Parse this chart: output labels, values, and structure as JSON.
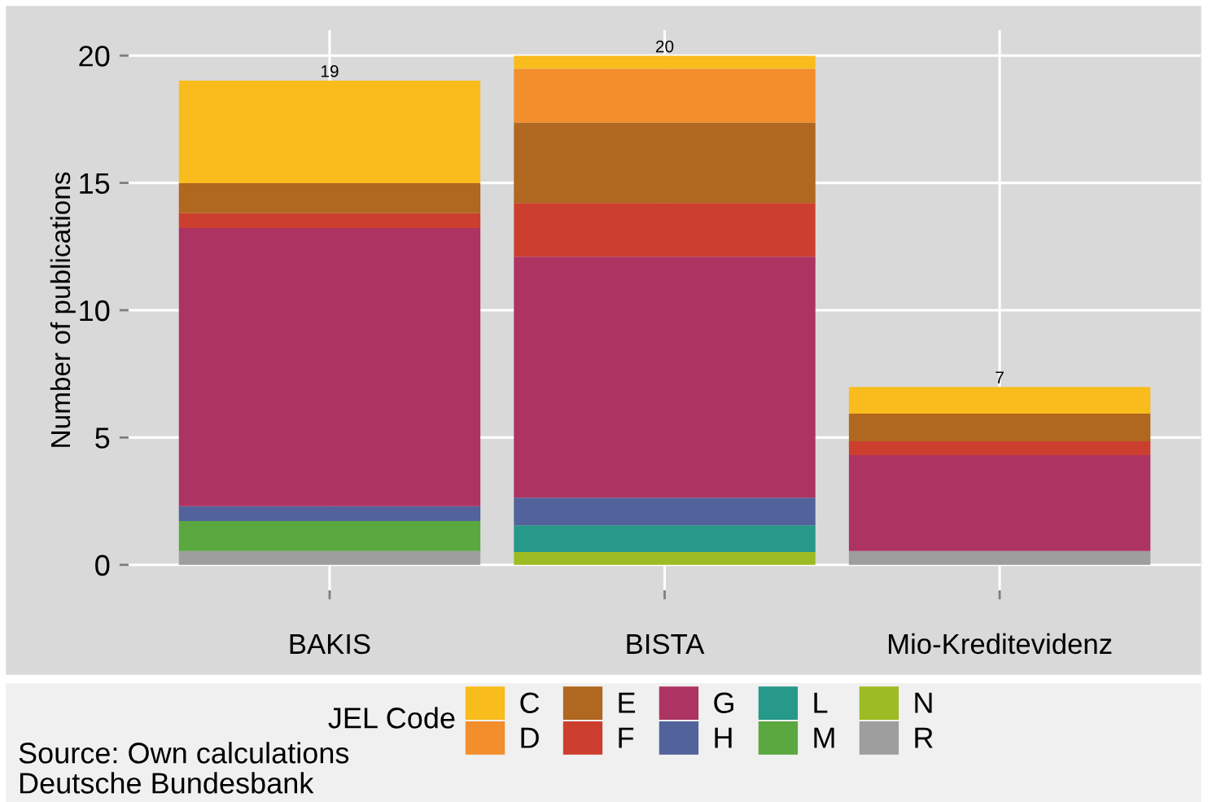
{
  "chart_data": {
    "type": "bar",
    "stacked": true,
    "ylabel": "Number of publications",
    "legend_title": "JEL Code",
    "categories": [
      "BAKIS",
      "BISTA",
      "Mio-Kreditevidenz"
    ],
    "series": [
      {
        "name": "R",
        "color": "#9e9e9f",
        "values": [
          0.54,
          0,
          0.54
        ]
      },
      {
        "name": "N",
        "color": "#9dbb22",
        "values": [
          0,
          0.5,
          0
        ]
      },
      {
        "name": "M",
        "color": "#5aa83f",
        "values": [
          1.18,
          0,
          0
        ]
      },
      {
        "name": "L",
        "color": "#26998a",
        "values": [
          0,
          1.05,
          0
        ]
      },
      {
        "name": "H",
        "color": "#52639c",
        "values": [
          0.58,
          1.09,
          0
        ]
      },
      {
        "name": "G",
        "color": "#ad3363",
        "values": [
          10.93,
          9.46,
          3.77
        ]
      },
      {
        "name": "F",
        "color": "#cc3f2e",
        "values": [
          0.58,
          2.11,
          0.54
        ]
      },
      {
        "name": "E",
        "color": "#b0671f",
        "values": [
          1.18,
          3.16,
          1.09
        ]
      },
      {
        "name": "D",
        "color": "#f28e2b",
        "values": [
          0,
          2.11,
          0
        ]
      },
      {
        "name": "C",
        "color": "#f9bc1d",
        "values": [
          4.03,
          0.51,
          1.05
        ]
      }
    ],
    "totals": [
      "19",
      "20",
      "7"
    ],
    "ylim": [
      -1,
      21
    ],
    "yticks": [
      0,
      5,
      10,
      15,
      20
    ],
    "grid": true,
    "legend": "bottom",
    "annotations": [
      "Source: Own calculations",
      "Deutsche Bundesbank"
    ]
  }
}
